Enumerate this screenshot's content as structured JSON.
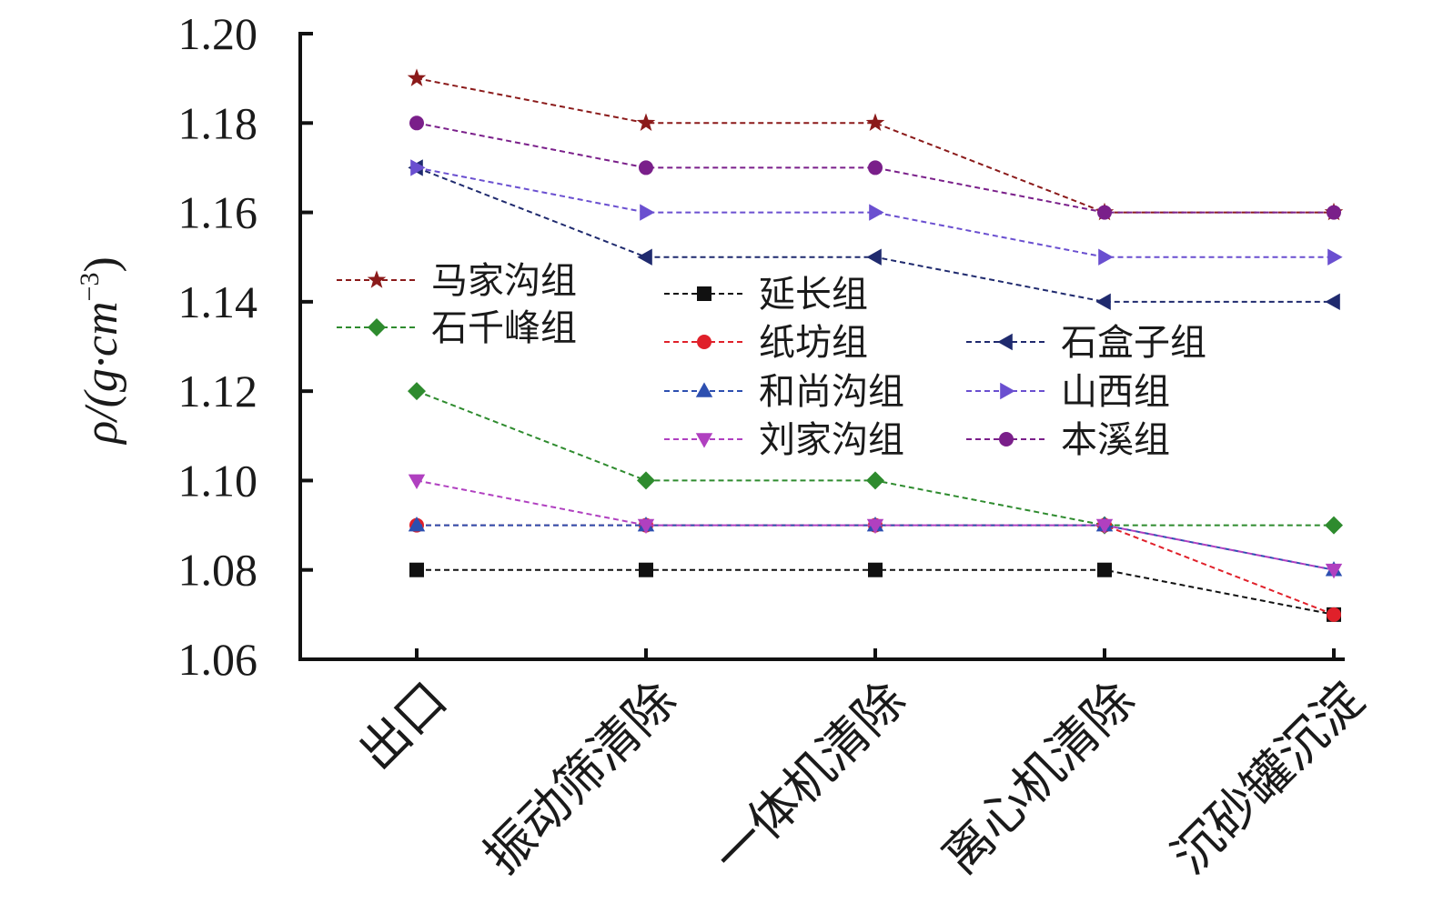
{
  "chart_data": {
    "type": "line",
    "ylabel_prefix": "ρ/(g·cm",
    "ylabel_exp": "−3",
    "ylabel_suffix": ")",
    "ylim": [
      1.06,
      1.2
    ],
    "yticks": [
      "1.06",
      "1.08",
      "1.10",
      "1.12",
      "1.14",
      "1.16",
      "1.18",
      "1.20"
    ],
    "categories": [
      "出口",
      "振动筛清除",
      "一体机清除",
      "离心机清除",
      "沉砂罐沉淀"
    ],
    "grid": false,
    "series": [
      {
        "name": "马家沟组",
        "values": [
          1.19,
          1.18,
          1.18,
          1.16,
          1.16
        ],
        "color": "#8b1a1a",
        "marker": "star"
      },
      {
        "name": "石千峰组",
        "values": [
          1.12,
          1.1,
          1.1,
          1.09,
          1.09
        ],
        "color": "#2e8b2e",
        "marker": "diamond"
      },
      {
        "name": "延长组",
        "values": [
          1.08,
          1.08,
          1.08,
          1.08,
          1.07
        ],
        "color": "#111111",
        "marker": "square"
      },
      {
        "name": "纸坊组",
        "values": [
          1.09,
          1.09,
          1.09,
          1.09,
          1.07
        ],
        "color": "#e0202a",
        "marker": "circle"
      },
      {
        "name": "和尚沟组",
        "values": [
          1.09,
          1.09,
          1.09,
          1.09,
          1.08
        ],
        "color": "#2d4fb0",
        "marker": "triangle-up"
      },
      {
        "name": "刘家沟组",
        "values": [
          1.1,
          1.09,
          1.09,
          1.09,
          1.08
        ],
        "color": "#b040c0",
        "marker": "triangle-down"
      },
      {
        "name": "石盒子组",
        "values": [
          1.17,
          1.15,
          1.15,
          1.14,
          1.14
        ],
        "color": "#1f2a6e",
        "marker": "triangle-left"
      },
      {
        "name": "山西组",
        "values": [
          1.17,
          1.16,
          1.16,
          1.15,
          1.15
        ],
        "color": "#6a4fd0",
        "marker": "triangle-right"
      },
      {
        "name": "本溪组",
        "values": [
          1.18,
          1.17,
          1.17,
          1.16,
          1.16
        ],
        "color": "#7a1f8a",
        "marker": "circle"
      }
    ]
  }
}
